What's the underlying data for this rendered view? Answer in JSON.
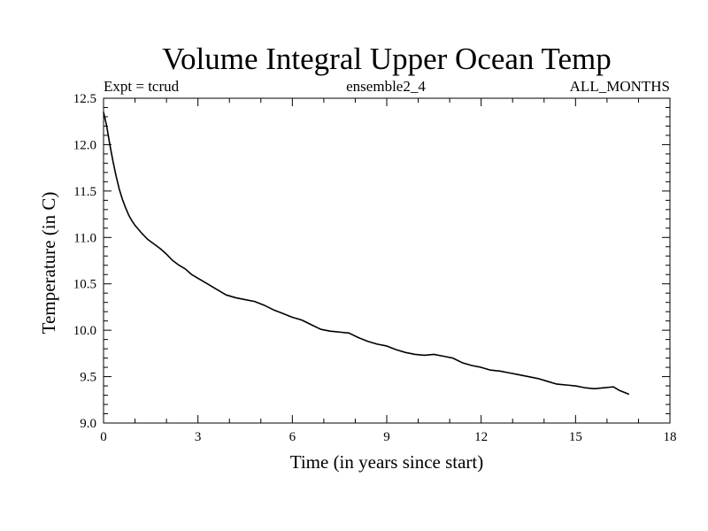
{
  "chart_data": {
    "type": "line",
    "title": "Volume Integral Upper Ocean Temp",
    "subtitle_left": "Expt = tcrud",
    "subtitle_center": "ensemble2_4",
    "subtitle_right": "ALL_MONTHS",
    "xlabel": "Time (in years since start)",
    "ylabel": "Temperature (in C)",
    "xlim": [
      0,
      18
    ],
    "ylim": [
      9.0,
      12.5
    ],
    "x_ticks": [
      "0",
      "3",
      "6",
      "9",
      "12",
      "15",
      "18"
    ],
    "y_ticks": [
      "9.0",
      "9.5",
      "10.0",
      "10.5",
      "11.0",
      "11.5",
      "12.0",
      "12.5"
    ],
    "grid": false,
    "series": [
      {
        "x": [
          0.0,
          0.1,
          0.2,
          0.3,
          0.4,
          0.5,
          0.6,
          0.7,
          0.8,
          0.9,
          1.0,
          1.2,
          1.4,
          1.6,
          1.8,
          2.0,
          2.2,
          2.4,
          2.6,
          2.8,
          3.0,
          3.3,
          3.6,
          3.9,
          4.2,
          4.5,
          4.8,
          5.1,
          5.4,
          5.7,
          6.0,
          6.3,
          6.6,
          6.9,
          7.2,
          7.5,
          7.8,
          8.1,
          8.4,
          8.7,
          9.0,
          9.3,
          9.6,
          9.9,
          10.2,
          10.5,
          10.8,
          11.1,
          11.4,
          11.7,
          12.0,
          12.3,
          12.6,
          12.9,
          13.2,
          13.5,
          13.8,
          14.1,
          14.4,
          14.7,
          15.0,
          15.3,
          15.6,
          15.9,
          16.2,
          16.4,
          16.7
        ],
        "y": [
          12.35,
          12.2,
          12.0,
          11.82,
          11.66,
          11.52,
          11.41,
          11.32,
          11.24,
          11.18,
          11.13,
          11.05,
          10.98,
          10.93,
          10.88,
          10.82,
          10.75,
          10.7,
          10.66,
          10.6,
          10.56,
          10.5,
          10.44,
          10.38,
          10.35,
          10.33,
          10.31,
          10.27,
          10.22,
          10.18,
          10.14,
          10.11,
          10.06,
          10.01,
          9.99,
          9.98,
          9.97,
          9.92,
          9.88,
          9.85,
          9.83,
          9.79,
          9.76,
          9.74,
          9.73,
          9.74,
          9.72,
          9.7,
          9.65,
          9.62,
          9.6,
          9.57,
          9.56,
          9.54,
          9.52,
          9.5,
          9.48,
          9.45,
          9.42,
          9.41,
          9.4,
          9.38,
          9.37,
          9.38,
          9.39,
          9.35,
          9.31
        ]
      }
    ]
  }
}
